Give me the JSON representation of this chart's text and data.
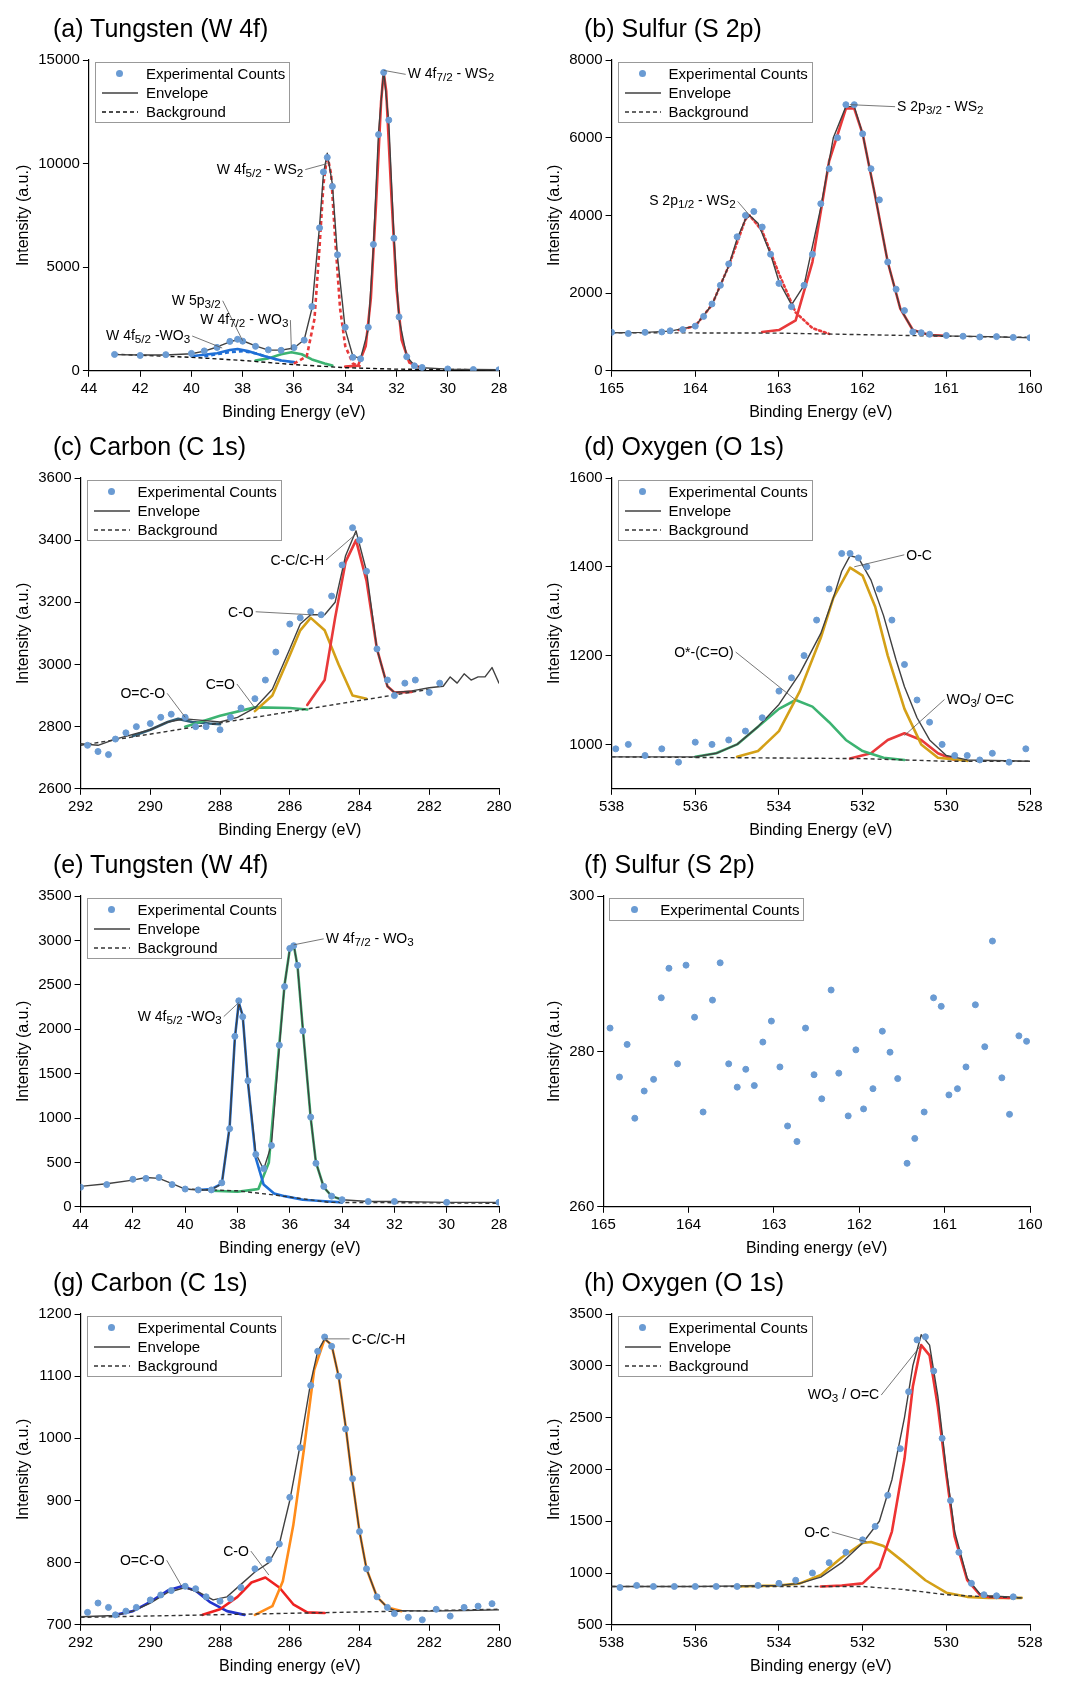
{
  "chart_data": [
    {
      "type": "line",
      "title": "(a)  Tungsten (W 4f)",
      "xlabel": "Binding Energy (eV)",
      "ylabel": "Intensity (a.u.)",
      "xlim": [
        44,
        28
      ],
      "xticks": [
        44,
        42,
        40,
        38,
        36,
        34,
        32,
        30,
        28
      ],
      "ylim": [
        0,
        15000
      ],
      "yticks": [
        0,
        5000,
        10000,
        15000
      ],
      "grid": false,
      "legend": "top left",
      "annotations": [
        {
          "text": "W 4f$_{7/2}$ - WS$_{2}$",
          "x": 32.5,
          "y": 14500
        },
        {
          "text": "W 4f$_{5/2}$ - WS$_{2}$",
          "x": 34.7,
          "y": 10000
        },
        {
          "text": "W 5p$_{3/2}$",
          "x": 38,
          "y": 1450
        },
        {
          "text": "W 4f$_{7/2}$ - WO$_{3}$",
          "x": 36.1,
          "y": 1000
        },
        {
          "text": "W 4f$_{5/2}$ -WO$_{3}$",
          "x": 38.8,
          "y": 1100
        }
      ],
      "series": [
        {
          "name": "Experimental Counts",
          "type": "scatter",
          "marker": "circle",
          "color": "#6a9bd3",
          "x": [
            43,
            42,
            41,
            40,
            39.5,
            39,
            38.5,
            38.2,
            38,
            37.5,
            37,
            36.5,
            36,
            35.6,
            35.3,
            35,
            34.85,
            34.7,
            34.5,
            34.3,
            34,
            33.7,
            33.4,
            33.1,
            32.9,
            32.7,
            32.5,
            32.3,
            32.1,
            31.9,
            31.6,
            31.3,
            31,
            30,
            29,
            28
          ],
          "values": [
            790,
            740,
            780,
            840,
            960,
            1130,
            1420,
            1520,
            1430,
            1180,
            1010,
            990,
            1120,
            1480,
            3100,
            6900,
            9600,
            10300,
            8900,
            5600,
            2100,
            650,
            580,
            2100,
            6100,
            11400,
            14400,
            12100,
            6400,
            2600,
            680,
            240,
            160,
            90,
            60,
            50
          ]
        },
        {
          "name": "Envelope",
          "color": "#404040",
          "x": [
            43,
            42,
            41,
            40,
            39.5,
            39,
            38.5,
            38.2,
            38,
            37.5,
            37,
            36.5,
            36,
            35.6,
            35.3,
            35,
            34.85,
            34.7,
            34.5,
            34.3,
            34,
            33.7,
            33.4,
            33.1,
            32.9,
            32.7,
            32.5,
            32.3,
            32.1,
            31.9,
            31.6,
            31.3,
            31,
            30,
            29,
            28
          ],
          "values": [
            780,
            760,
            760,
            820,
            950,
            1150,
            1400,
            1500,
            1450,
            1200,
            1000,
            1000,
            1100,
            1500,
            3000,
            7000,
            9500,
            10500,
            9000,
            5500,
            2000,
            700,
            600,
            2000,
            6000,
            11500,
            14500,
            12000,
            6500,
            2500,
            700,
            250,
            150,
            80,
            60,
            50
          ]
        },
        {
          "name": "Background",
          "line_style": "dashed",
          "color": "#111111",
          "x": [
            43,
            40,
            38,
            36,
            34,
            32,
            28
          ],
          "values": [
            800,
            650,
            500,
            300,
            150,
            80,
            50
          ]
        },
        {
          "color": "#e8393a",
          "x": [
            34,
            33.5,
            33.2,
            33,
            32.8,
            32.6,
            32.5,
            32.4,
            32.2,
            32,
            31.8,
            31.5,
            31
          ],
          "values": [
            200,
            250,
            1200,
            3500,
            8000,
            13000,
            14400,
            13500,
            8500,
            4000,
            1500,
            400,
            120
          ]
        },
        {
          "line_style": "dashed",
          "color": "#e8393a",
          "x": [
            36,
            35.5,
            35.2,
            35,
            34.85,
            34.7,
            34.55,
            34.4,
            34.2,
            34,
            33.7,
            33.4
          ],
          "values": [
            350,
            700,
            2500,
            6000,
            9000,
            10400,
            9500,
            6500,
            3000,
            1200,
            350,
            200
          ]
        },
        {
          "color": "#1f6fd6",
          "x": [
            40,
            39,
            38.5,
            38.2,
            37.8,
            37,
            36.5,
            36
          ],
          "values": [
            700,
            850,
            1000,
            1050,
            950,
            650,
            500,
            420
          ]
        },
        {
          "line_style": "dashed",
          "color": "#1f6fd6",
          "x": [
            39.5,
            39,
            38.5,
            38,
            37.5,
            37,
            36.5
          ],
          "values": [
            700,
            800,
            900,
            950,
            850,
            650,
            500
          ]
        },
        {
          "color": "#3cb371",
          "x": [
            37.5,
            37,
            36.5,
            36.1,
            35.7,
            35.3,
            34.8,
            34.5
          ],
          "values": [
            500,
            600,
            800,
            900,
            800,
            550,
            350,
            250
          ]
        }
      ]
    },
    {
      "type": "line",
      "title": "(b)  Sulfur (S 2p)",
      "xlabel": "Binding Energy (eV)",
      "ylabel": "Intensity (a.u.)",
      "xlim": [
        165,
        160
      ],
      "xticks": [
        165,
        164,
        163,
        162,
        161,
        160
      ],
      "ylim": [
        0,
        8000
      ],
      "yticks": [
        0,
        2000,
        4000,
        6000,
        8000
      ],
      "grid": false,
      "legend": "top left",
      "annotations": [
        {
          "text": "S 2p$_{3/2}$ - WS$_{2}$",
          "x": 162.15,
          "y": 6850
        },
        {
          "text": "S 2p$_{1/2}$ - WS$_{2}$",
          "x": 163.35,
          "y": 4000
        }
      ],
      "series": [
        {
          "name": "Experimental Counts",
          "type": "scatter",
          "marker": "circle",
          "color": "#6a9bd3",
          "x": [
            165,
            164.8,
            164.6,
            164.4,
            164.3,
            164.15,
            164,
            163.9,
            163.8,
            163.7,
            163.6,
            163.5,
            163.4,
            163.3,
            163.2,
            163.1,
            163,
            162.85,
            162.7,
            162.6,
            162.5,
            162.4,
            162.3,
            162.2,
            162.1,
            162,
            161.9,
            161.8,
            161.7,
            161.6,
            161.5,
            161.4,
            161.3,
            161.2,
            161,
            160.8,
            160.6,
            160.4,
            160.2,
            160
          ],
          "values": [
            990,
            960,
            990,
            1000,
            1030,
            1060,
            1150,
            1400,
            1720,
            2200,
            2750,
            3450,
            4000,
            4100,
            3700,
            3000,
            2250,
            1650,
            2200,
            3000,
            4300,
            5200,
            6000,
            6850,
            6850,
            6100,
            5200,
            4400,
            2800,
            2100,
            1550,
            1000,
            980,
            940,
            910,
            890,
            870,
            880,
            860,
            850
          ]
        },
        {
          "name": "Envelope",
          "color": "#404040",
          "x": [
            165,
            164.6,
            164.3,
            164,
            163.8,
            163.6,
            163.5,
            163.4,
            163.35,
            163.25,
            163.1,
            163,
            162.85,
            162.7,
            162.5,
            162.35,
            162.2,
            162.1,
            162,
            161.85,
            161.7,
            161.55,
            161.4,
            161.2,
            161,
            160.5,
            160
          ],
          "values": [
            980,
            990,
            1020,
            1150,
            1700,
            2700,
            3400,
            3900,
            4000,
            3800,
            3000,
            2300,
            1700,
            2200,
            4200,
            6000,
            6800,
            6800,
            6100,
            4500,
            2800,
            1600,
            1050,
            920,
            900,
            880,
            850
          ]
        },
        {
          "name": "Background",
          "line_style": "dashed",
          "color": "#333333",
          "x": [
            165,
            163,
            162,
            161,
            160
          ],
          "values": [
            980,
            970,
            930,
            890,
            860
          ]
        },
        {
          "color": "#e8393a",
          "x": [
            163.2,
            163,
            162.8,
            162.6,
            162.4,
            162.2,
            162.1,
            162,
            161.85,
            161.7,
            161.55,
            161.4,
            161.2,
            161
          ],
          "values": [
            1000,
            1050,
            1300,
            2800,
            5400,
            6750,
            6750,
            6100,
            4500,
            2800,
            1600,
            1050,
            920,
            900
          ]
        },
        {
          "line_style": "dotted",
          "color": "#e8393a",
          "x": [
            164.2,
            164,
            163.8,
            163.6,
            163.4,
            163.35,
            163.2,
            163,
            162.8,
            162.6,
            162.4
          ],
          "values": [
            1050,
            1150,
            1700,
            2700,
            3900,
            4000,
            3600,
            2500,
            1500,
            1100,
            950
          ]
        }
      ]
    },
    {
      "type": "line",
      "title": "(c)  Carbon (C 1s)",
      "xlabel": "Binding Energy (eV)",
      "ylabel": "Intensity (a.u.)",
      "xlim": [
        292,
        280
      ],
      "xticks": [
        292,
        290,
        288,
        286,
        284,
        282,
        280
      ],
      "ylim": [
        2600,
        3600
      ],
      "yticks": [
        2600,
        2800,
        3000,
        3200,
        3400,
        3600
      ],
      "grid": false,
      "legend": "top left",
      "annotations": [
        {
          "text": "C-C/C-H",
          "x": 284.1,
          "y": 3420
        },
        {
          "text": "C-O",
          "x": 285.4,
          "y": 3160
        },
        {
          "text": "C=O",
          "x": 287,
          "y": 2860
        },
        {
          "text": "O=C-O",
          "x": 289,
          "y": 2830
        }
      ],
      "series": [
        {
          "name": "Experimental Counts",
          "type": "scatter",
          "marker": "circle",
          "color": "#6a9bd3",
          "x": [
            291.8,
            291.5,
            291.2,
            291,
            290.7,
            290.4,
            290,
            289.7,
            289.4,
            289,
            288.7,
            288.4,
            288,
            287.7,
            287.4,
            287,
            286.7,
            286.4,
            286,
            285.7,
            285.4,
            285.1,
            284.8,
            284.5,
            284.2,
            284,
            283.8,
            283.5,
            283.2,
            283,
            282.7,
            282.4,
            282,
            281.7
          ],
          "values": [
            2740,
            2720,
            2710,
            2760,
            2780,
            2800,
            2810,
            2830,
            2840,
            2830,
            2800,
            2800,
            2790,
            2830,
            2860,
            2890,
            2950,
            3040,
            3130,
            3150,
            3170,
            3160,
            3220,
            3320,
            3440,
            3400,
            3300,
            3050,
            2950,
            2900,
            2940,
            2950,
            2910,
            2940
          ]
        },
        {
          "name": "Envelope",
          "color": "#404040",
          "x": [
            292,
            291.5,
            291,
            290,
            289.5,
            289,
            288.5,
            288,
            287.5,
            287,
            286.5,
            286,
            285.7,
            285.4,
            285,
            284.7,
            284.4,
            284.1,
            283.8,
            283.5,
            283.2,
            283,
            282.5,
            282,
            281.6,
            281.4,
            281.2,
            281,
            280.8,
            280.6,
            280.4,
            280.2,
            280
          ],
          "values": [
            2745,
            2740,
            2760,
            2790,
            2815,
            2825,
            2820,
            2815,
            2830,
            2860,
            2920,
            3050,
            3130,
            3160,
            3160,
            3200,
            3350,
            3430,
            3300,
            3050,
            2930,
            2910,
            2915,
            2925,
            2930,
            2960,
            2940,
            2970,
            2950,
            2960,
            2960,
            2990,
            2940
          ]
        },
        {
          "name": "Background",
          "line_style": "dashed",
          "color": "#333333",
          "x": [
            292,
            282
          ],
          "values": [
            2740,
            2920
          ]
        },
        {
          "color": "#e8393a",
          "x": [
            285.5,
            285,
            284.7,
            284.4,
            284.1,
            283.8,
            283.5,
            283.2,
            283,
            282.5
          ],
          "values": [
            2870,
            2950,
            3150,
            3330,
            3400,
            3270,
            3050,
            2930,
            2910,
            2912
          ]
        },
        {
          "color": "#d4a017",
          "x": [
            287,
            286.5,
            286,
            285.7,
            285.4,
            285,
            284.6,
            284.2,
            283.8
          ],
          "values": [
            2850,
            2900,
            3030,
            3110,
            3150,
            3110,
            3000,
            2900,
            2890
          ]
        },
        {
          "color": "#3cb371",
          "x": [
            289,
            288,
            287,
            286,
            285.5
          ],
          "values": [
            2800,
            2835,
            2862,
            2860,
            2855
          ]
        },
        {
          "color": "#2f5f7a",
          "x": [
            290.5,
            290,
            289.5,
            289.2,
            288.8,
            288.3,
            288
          ],
          "values": [
            2770,
            2790,
            2815,
            2825,
            2815,
            2810,
            2808
          ]
        }
      ]
    },
    {
      "type": "line",
      "title": "(d)  Oxygen (O 1s)",
      "xlabel": "Binding Energy (eV)",
      "ylabel": "Intensity (a.u.)",
      "xlim": [
        538,
        528
      ],
      "xticks": [
        538,
        536,
        534,
        532,
        530,
        528
      ],
      "ylim": [
        900,
        1600
      ],
      "yticks": [
        1000,
        1200,
        1400,
        1600
      ],
      "grid": false,
      "legend": "top left",
      "annotations": [
        {
          "text": "O-C",
          "x": 532.2,
          "y": 1400
        },
        {
          "text": "O*-(C=O)",
          "x": 533.6,
          "y": 1100
        },
        {
          "text": "WO$_{3}$/ O=C",
          "x": 531,
          "y": 1020
        }
      ],
      "series": [
        {
          "name": "Experimental Counts",
          "type": "scatter",
          "marker": "circle",
          "color": "#6a9bd3",
          "x": [
            537.9,
            537.6,
            537.2,
            536.8,
            536.4,
            536,
            535.6,
            535.2,
            534.8,
            534.4,
            534,
            533.7,
            533.4,
            533.1,
            532.8,
            532.5,
            532.3,
            532.1,
            531.9,
            531.6,
            531.3,
            531,
            530.7,
            530.4,
            530.1,
            529.8,
            529.5,
            529.2,
            528.9,
            528.5,
            528.1
          ],
          "values": [
            990,
            1000,
            975,
            990,
            960,
            1005,
            1000,
            1010,
            1030,
            1060,
            1120,
            1150,
            1200,
            1280,
            1350,
            1430,
            1430,
            1420,
            1400,
            1350,
            1280,
            1180,
            1100,
            1050,
            1000,
            975,
            975,
            965,
            980,
            960,
            990
          ]
        },
        {
          "name": "Envelope",
          "color": "#404040",
          "x": [
            538,
            536,
            535.5,
            535,
            534.5,
            534,
            533.5,
            533,
            532.7,
            532.5,
            532.3,
            532.1,
            531.8,
            531.5,
            531.2,
            531,
            530.7,
            530.4,
            530,
            529.5,
            528
          ],
          "values": [
            972,
            972,
            980,
            1000,
            1040,
            1090,
            1160,
            1250,
            1330,
            1390,
            1425,
            1420,
            1370,
            1290,
            1190,
            1130,
            1060,
            1010,
            975,
            965,
            962
          ]
        },
        {
          "name": "Background",
          "line_style": "dashed",
          "color": "#333333",
          "x": [
            538,
            532,
            530,
            528
          ],
          "values": [
            972,
            968,
            962,
            962
          ]
        },
        {
          "color": "#d4a017",
          "x": [
            535,
            534.5,
            534,
            533.5,
            533,
            532.7,
            532.3,
            532,
            531.7,
            531.4,
            531,
            530.6,
            530.2,
            529.5
          ],
          "values": [
            972,
            985,
            1030,
            1120,
            1240,
            1330,
            1398,
            1380,
            1310,
            1200,
            1080,
            1000,
            970,
            963
          ]
        },
        {
          "color": "#3cb371",
          "x": [
            536,
            535.5,
            535,
            534.5,
            534,
            533.6,
            533.2,
            532.8,
            532.4,
            532,
            531.5,
            531
          ],
          "values": [
            972,
            980,
            1000,
            1040,
            1080,
            1100,
            1085,
            1050,
            1010,
            985,
            970,
            965
          ]
        },
        {
          "color": "#e8393a",
          "x": [
            532.3,
            531.8,
            531.4,
            531,
            530.6,
            530.2,
            529.8
          ],
          "values": [
            968,
            980,
            1010,
            1025,
            1010,
            980,
            965
          ]
        }
      ]
    },
    {
      "type": "line",
      "title": "(e)  Tungsten (W 4f)",
      "xlabel": "Binding energy (eV)",
      "ylabel": "Intensity (a.u.)",
      "xlim": [
        44,
        28
      ],
      "xticks": [
        44,
        42,
        40,
        38,
        36,
        34,
        32,
        30,
        28
      ],
      "ylim": [
        0,
        3500
      ],
      "yticks": [
        0,
        500,
        1000,
        1500,
        2000,
        2500,
        3000,
        3500
      ],
      "grid": false,
      "legend": "top left",
      "annotations": [
        {
          "text": "W 4f$_{7/2}$ - WO$_{3}$",
          "x": 35.85,
          "y": 2950
        },
        {
          "text": "W 4f$_{5/2}$ -WO$_{3}$",
          "x": 37.95,
          "y": 2300
        }
      ],
      "series": [
        {
          "name": "Experimental Counts",
          "type": "scatter",
          "marker": "circle",
          "color": "#6a9bd3",
          "x": [
            44,
            43,
            42,
            41.5,
            41,
            40.5,
            40,
            39.5,
            39,
            38.6,
            38.3,
            38.1,
            37.95,
            37.8,
            37.6,
            37.3,
            37,
            36.7,
            36.4,
            36.2,
            36,
            35.85,
            35.7,
            35.5,
            35.2,
            35,
            34.7,
            34.4,
            34,
            33,
            32,
            30,
            28
          ],
          "values": [
            220,
            250,
            310,
            320,
            330,
            250,
            200,
            190,
            190,
            270,
            880,
            1920,
            2320,
            2140,
            1420,
            590,
            430,
            690,
            1820,
            2480,
            2910,
            2940,
            2720,
            1980,
            1010,
            490,
            230,
            120,
            80,
            60,
            60,
            50,
            50
          ]
        },
        {
          "name": "Envelope",
          "color": "#404040",
          "x": [
            44,
            43,
            42,
            41.5,
            41,
            40.5,
            40,
            39.5,
            39,
            38.6,
            38.3,
            38.1,
            37.95,
            37.8,
            37.6,
            37.3,
            37,
            36.7,
            36.4,
            36.2,
            36,
            35.85,
            35.7,
            35.5,
            35.2,
            35,
            34.7,
            34.4,
            34,
            33,
            32,
            30,
            28
          ],
          "values": [
            230,
            260,
            300,
            330,
            320,
            260,
            200,
            190,
            190,
            260,
            900,
            1900,
            2300,
            2150,
            1400,
            600,
            420,
            700,
            1800,
            2500,
            2900,
            2950,
            2700,
            2000,
            1000,
            500,
            220,
            120,
            80,
            60,
            60,
            50,
            50
          ]
        },
        {
          "name": "Background",
          "line_style": "dashed",
          "color": "#333333",
          "x": [
            40,
            38,
            36.5,
            34.5,
            28
          ],
          "values": [
            200,
            180,
            130,
            50,
            40
          ]
        },
        {
          "color": "#1f6fd6",
          "x": [
            39.5,
            39,
            38.6,
            38.3,
            38.1,
            37.95,
            37.8,
            37.6,
            37.3,
            37,
            36.6,
            36.2,
            35.5,
            34.5,
            34
          ],
          "values": [
            190,
            200,
            260,
            900,
            1900,
            2300,
            2150,
            1400,
            550,
            250,
            150,
            120,
            80,
            60,
            50
          ]
        },
        {
          "color": "#3cb371",
          "x": [
            39,
            38,
            37.2,
            36.8,
            36.5,
            36.2,
            36,
            35.85,
            35.7,
            35.5,
            35.2,
            35,
            34.7,
            34.4,
            34
          ],
          "values": [
            180,
            170,
            200,
            500,
            1500,
            2500,
            2900,
            2950,
            2700,
            2000,
            1000,
            500,
            220,
            120,
            80
          ]
        }
      ]
    },
    {
      "type": "scatter",
      "title": "(f)  Sulfur (S 2p)",
      "xlabel": "Binding energy (eV)",
      "ylabel": "Intensity (a.u.)",
      "xlim": [
        165,
        160
      ],
      "xticks": [
        165,
        164,
        163,
        162,
        161,
        160
      ],
      "ylim": [
        260,
        300
      ],
      "yticks": [
        260,
        280,
        300
      ],
      "grid": false,
      "legend": "top left",
      "series": [
        {
          "name": "Experimental Counts",
          "marker": "circle",
          "color": "#6a9bd3",
          "x": [
            164.92,
            164.81,
            164.72,
            164.63,
            164.52,
            164.41,
            164.32,
            164.23,
            164.13,
            164.03,
            163.93,
            163.83,
            163.72,
            163.63,
            163.53,
            163.43,
            163.33,
            163.23,
            163.13,
            163.03,
            162.93,
            162.84,
            162.73,
            162.63,
            162.53,
            162.44,
            162.33,
            162.24,
            162.13,
            162.04,
            161.95,
            161.84,
            161.73,
            161.64,
            161.55,
            161.44,
            161.35,
            161.24,
            161.13,
            161.04,
            160.95,
            160.85,
            160.75,
            160.64,
            160.53,
            160.44,
            160.33,
            160.24,
            160.13,
            160.04
          ],
          "values": [
            283.0,
            276.7,
            280.9,
            271.4,
            274.9,
            276.4,
            286.9,
            290.7,
            278.4,
            291.1,
            284.4,
            272.2,
            286.6,
            291.4,
            278.4,
            275.4,
            277.7,
            275.6,
            281.2,
            283.9,
            278.0,
            270.4,
            268.4,
            283.0,
            277.0,
            273.9,
            287.9,
            277.2,
            271.7,
            280.2,
            272.6,
            275.2,
            282.6,
            279.9,
            276.5,
            265.6,
            268.8,
            272.2,
            286.9,
            285.8,
            274.4,
            275.2,
            278.0,
            286.0,
            280.6,
            294.2,
            276.6,
            271.9,
            282.0,
            281.3
          ]
        }
      ]
    },
    {
      "type": "line",
      "title": "(g)  Carbon (C 1s)",
      "xlabel": "Binding energy (eV)",
      "ylabel": "Intensity (a.u.)",
      "xlim": [
        292,
        280
      ],
      "xticks": [
        292,
        290,
        288,
        286,
        284,
        282,
        280
      ],
      "ylim": [
        700,
        1200
      ],
      "yticks": [
        700,
        800,
        900,
        1000,
        1100,
        1200
      ],
      "grid": false,
      "legend": "top left",
      "annotations": [
        {
          "text": "C-C/C-H",
          "x": 285,
          "y": 1160
        },
        {
          "text": "C-O",
          "x": 286.6,
          "y": 780
        },
        {
          "text": "O=C-O",
          "x": 289.1,
          "y": 762
        }
      ],
      "series": [
        {
          "name": "Experimental Counts",
          "type": "scatter",
          "marker": "circle",
          "color": "#6a9bd3",
          "x": [
            291.8,
            291.5,
            291.2,
            291,
            290.7,
            290.4,
            290,
            289.7,
            289.4,
            289,
            288.7,
            288.4,
            288,
            287.7,
            287.4,
            287,
            286.6,
            286.3,
            286,
            285.7,
            285.4,
            285.2,
            285,
            284.8,
            284.6,
            284.4,
            284.2,
            284,
            283.8,
            283.5,
            283.2,
            283,
            282.6,
            282.2,
            281.8,
            281.4,
            281,
            280.6,
            280.2
          ],
          "values": [
            720,
            735,
            728,
            716,
            722,
            728,
            740,
            748,
            755,
            762,
            758,
            745,
            738,
            742,
            760,
            790,
            805,
            830,
            905,
            985,
            1085,
            1140,
            1163,
            1148,
            1100,
            1015,
            935,
            850,
            790,
            745,
            728,
            718,
            712,
            708,
            725,
            714,
            728,
            730,
            734
          ]
        },
        {
          "name": "Envelope",
          "color": "#404040",
          "x": [
            292,
            291,
            290.5,
            290,
            289.5,
            289,
            288.6,
            288.2,
            287.8,
            287.4,
            287,
            286.6,
            286.3,
            286,
            285.7,
            285.4,
            285.2,
            285,
            284.8,
            284.6,
            284.4,
            284.2,
            284,
            283.8,
            283.5,
            283.2,
            283,
            282,
            281,
            280
          ],
          "values": [
            713,
            715,
            722,
            735,
            752,
            760,
            752,
            740,
            745,
            765,
            785,
            800,
            830,
            900,
            990,
            1090,
            1140,
            1160,
            1150,
            1100,
            1020,
            930,
            850,
            790,
            745,
            728,
            723,
            722,
            723,
            724
          ]
        },
        {
          "name": "Background",
          "line_style": "dashed",
          "color": "#333333",
          "x": [
            292,
            280
          ],
          "values": [
            712,
            725
          ]
        },
        {
          "color": "#ff8c1a",
          "x": [
            287,
            286.5,
            286.2,
            285.9,
            285.6,
            285.3,
            285,
            284.8,
            284.6,
            284.4,
            284.2,
            284,
            283.8,
            283.5,
            283.2,
            282.8
          ],
          "values": [
            716,
            730,
            770,
            860,
            980,
            1110,
            1160,
            1150,
            1100,
            1020,
            930,
            850,
            790,
            745,
            728,
            722
          ]
        },
        {
          "color": "#ee2222",
          "x": [
            288.5,
            288,
            287.5,
            287.1,
            286.7,
            286.3,
            285.9,
            285.5,
            285
          ],
          "values": [
            716,
            725,
            745,
            768,
            776,
            760,
            733,
            720,
            719
          ]
        },
        {
          "color": "#2233cc",
          "x": [
            291,
            290.5,
            290,
            289.5,
            289.1,
            288.7,
            288.3,
            287.8,
            287.3
          ],
          "values": [
            716,
            722,
            737,
            755,
            762,
            755,
            737,
            722,
            716
          ]
        }
      ]
    },
    {
      "type": "line",
      "title": "(h)  Oxygen (O 1s)",
      "xlabel": "Binding energy (eV)",
      "ylabel": "Intensity (a.u.)",
      "xlim": [
        538,
        528
      ],
      "xticks": [
        538,
        536,
        534,
        532,
        530,
        528
      ],
      "ylim": [
        500,
        3500
      ],
      "yticks": [
        500,
        1000,
        1500,
        2000,
        2500,
        3000,
        3500
      ],
      "grid": false,
      "legend": "top left",
      "annotations": [
        {
          "text": "WO$_{3}$ / O=C",
          "x": 530.6,
          "y": 3200
        },
        {
          "text": "O-C",
          "x": 531.9,
          "y": 1300
        }
      ],
      "series": [
        {
          "name": "Experimental Counts",
          "type": "scatter",
          "marker": "circle",
          "color": "#6a9bd3",
          "x": [
            537.8,
            537.4,
            537,
            536.5,
            536,
            535.5,
            535,
            534.5,
            534,
            533.6,
            533.2,
            532.8,
            532.4,
            532,
            531.7,
            531.4,
            531.1,
            530.9,
            530.7,
            530.5,
            530.3,
            530.1,
            529.9,
            529.7,
            529.4,
            529.1,
            528.8,
            528.4
          ],
          "values": [
            860,
            880,
            870,
            870,
            870,
            870,
            870,
            880,
            900,
            930,
            1000,
            1100,
            1200,
            1320,
            1450,
            1750,
            2200,
            2750,
            3250,
            3280,
            2950,
            2300,
            1700,
            1200,
            900,
            790,
            780,
            770
          ]
        },
        {
          "name": "Envelope",
          "color": "#404040",
          "x": [
            538,
            536,
            534,
            533.5,
            533,
            532.5,
            532,
            531.6,
            531.3,
            531,
            530.8,
            530.6,
            530.4,
            530.2,
            530,
            529.8,
            529.5,
            529.2,
            529,
            528.5,
            528.2
          ],
          "values": [
            870,
            870,
            880,
            900,
            960,
            1100,
            1290,
            1500,
            1900,
            2500,
            3000,
            3300,
            3200,
            2700,
            2000,
            1400,
            950,
            800,
            780,
            770,
            760
          ]
        },
        {
          "name": "Background",
          "line_style": "dashed",
          "color": "#333333",
          "x": [
            538,
            532,
            531,
            530,
            529,
            528.2
          ],
          "values": [
            870,
            870,
            840,
            790,
            770,
            760
          ]
        },
        {
          "color": "#ee3333",
          "x": [
            533,
            532.5,
            532,
            531.6,
            531.3,
            531,
            530.8,
            530.6,
            530.4,
            530.2,
            530,
            529.8,
            529.5,
            529.2,
            529,
            528.5
          ],
          "values": [
            870,
            880,
            900,
            1050,
            1400,
            2100,
            2800,
            3200,
            3100,
            2600,
            1950,
            1350,
            930,
            790,
            770,
            760
          ]
        },
        {
          "color": "#d4a017",
          "x": [
            535,
            534,
            533.5,
            533,
            532.5,
            532,
            531.8,
            531.5,
            531,
            530.5,
            530,
            529.5,
            529,
            528.2
          ],
          "values": [
            870,
            880,
            900,
            980,
            1150,
            1290,
            1300,
            1260,
            1100,
            930,
            810,
            770,
            760,
            760
          ]
        }
      ]
    }
  ]
}
